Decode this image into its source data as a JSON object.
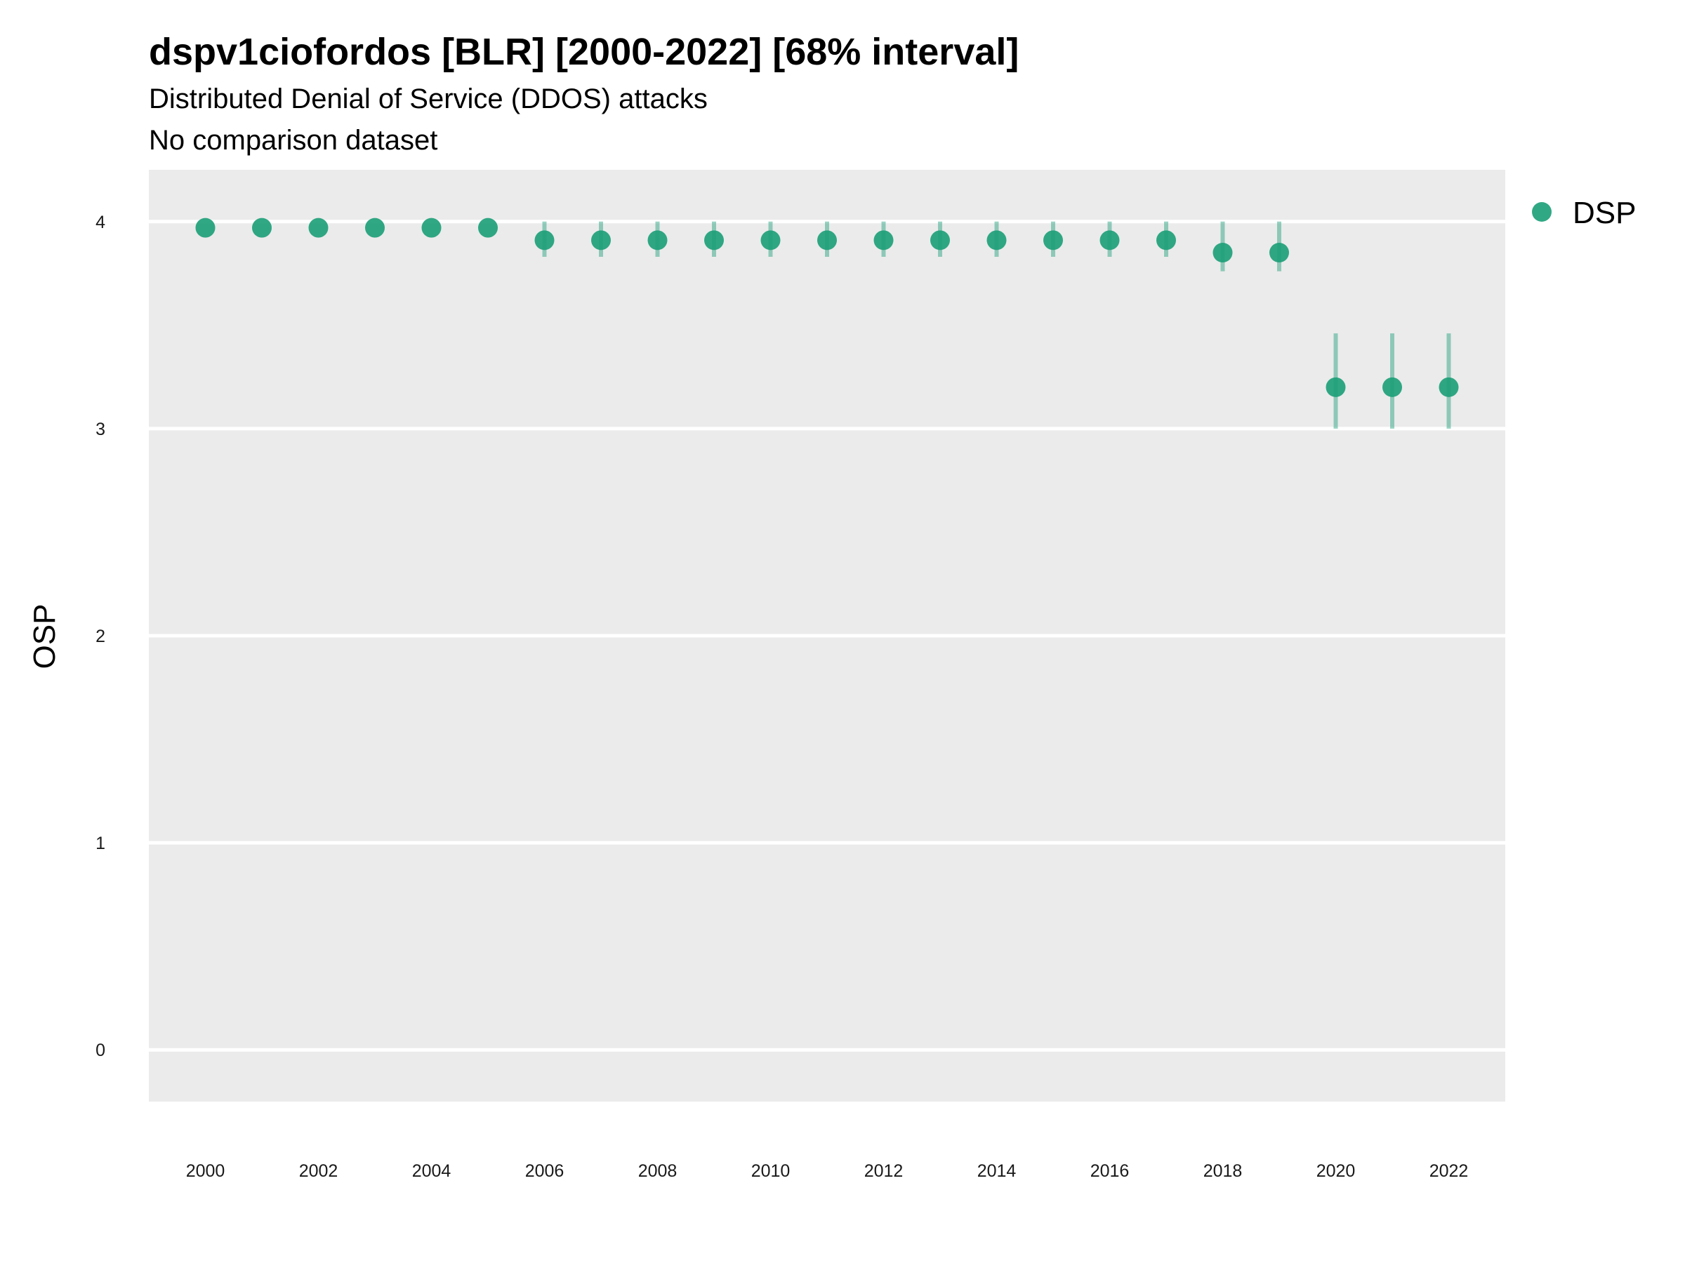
{
  "chart_data": {
    "type": "scatter",
    "title": "dspv1ciofordos [BLR] [2000-2022] [68% interval]",
    "subtitles": [
      "Distributed Denial of Service (DDOS) attacks",
      "No comparison dataset"
    ],
    "xlabel": "",
    "ylabel": "OSP",
    "xlim": [
      1999,
      2023
    ],
    "ylim": [
      -0.25,
      4.25
    ],
    "yticks": [
      0,
      1,
      2,
      3,
      4
    ],
    "xticks": [
      2000,
      2002,
      2004,
      2006,
      2008,
      2010,
      2012,
      2014,
      2016,
      2018,
      2020,
      2022
    ],
    "grid": true,
    "legend_position": "right",
    "series": [
      {
        "name": "DSP",
        "color": "#1b9e77",
        "x": [
          2000,
          2001,
          2002,
          2003,
          2004,
          2005,
          2006,
          2007,
          2008,
          2009,
          2010,
          2011,
          2012,
          2013,
          2014,
          2015,
          2016,
          2017,
          2018,
          2019,
          2020,
          2021,
          2022
        ],
        "y": [
          3.97,
          3.97,
          3.97,
          3.97,
          3.97,
          3.97,
          3.91,
          3.91,
          3.91,
          3.91,
          3.91,
          3.91,
          3.91,
          3.91,
          3.91,
          3.91,
          3.91,
          3.91,
          3.85,
          3.85,
          3.2,
          3.2,
          3.2
        ],
        "lower": [
          3.97,
          3.97,
          3.97,
          3.97,
          3.97,
          3.97,
          3.83,
          3.83,
          3.83,
          3.83,
          3.83,
          3.83,
          3.83,
          3.83,
          3.83,
          3.83,
          3.83,
          3.83,
          3.76,
          3.76,
          3.0,
          3.0,
          3.0
        ],
        "upper": [
          3.97,
          3.97,
          3.97,
          3.97,
          3.97,
          3.97,
          4.0,
          4.0,
          4.0,
          4.0,
          4.0,
          4.0,
          4.0,
          4.0,
          4.0,
          4.0,
          4.0,
          4.0,
          4.0,
          4.0,
          3.46,
          3.46,
          3.46
        ]
      }
    ]
  }
}
